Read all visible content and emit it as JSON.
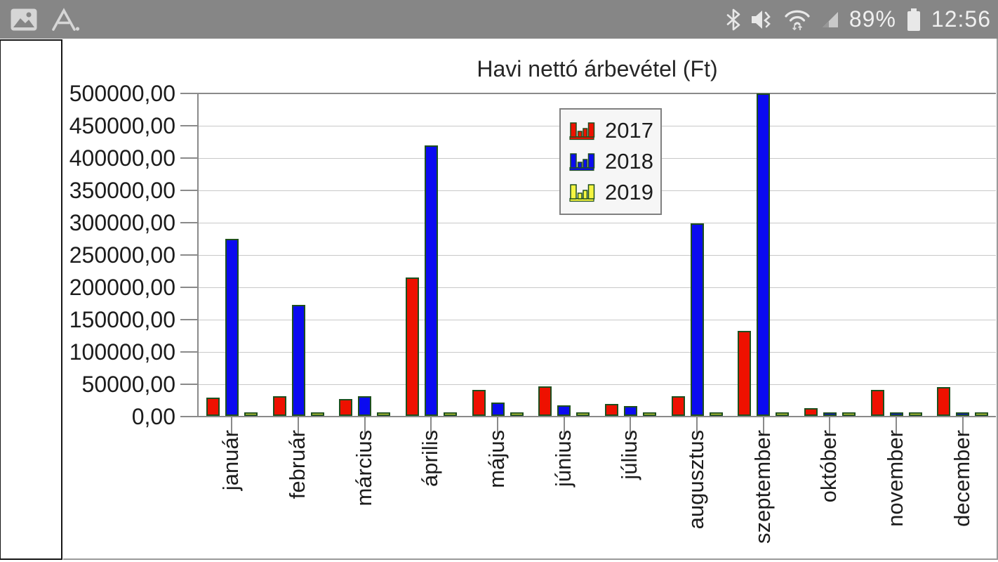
{
  "status_bar": {
    "bg_color": "#868686",
    "icons_left": [
      "gallery-icon",
      "letter-a-icon"
    ],
    "icons_right": [
      "bluetooth-icon",
      "mute-vibrate-icon",
      "wifi-traffic-icon",
      "cell-signal-icon",
      "battery-icon"
    ],
    "battery_percent": "89%",
    "time": "12:56"
  },
  "chart_data": {
    "type": "bar",
    "title": "Havi nettó árbevétel (Ft)",
    "categories": [
      "január",
      "február",
      "március",
      "április",
      "május",
      "június",
      "július",
      "augusztus",
      "szeptember",
      "október",
      "november",
      "december"
    ],
    "series": [
      {
        "name": "2017",
        "color": "#ee1100",
        "values": [
          28000,
          30000,
          26000,
          214000,
          40000,
          46000,
          18000,
          30000,
          131000,
          12000,
          40000,
          45000
        ]
      },
      {
        "name": "2018",
        "color": "#0b0bf0",
        "values": [
          274000,
          172000,
          30000,
          419000,
          21000,
          16000,
          15000,
          298000,
          499000,
          2000,
          2000,
          2000
        ]
      },
      {
        "name": "2019",
        "color": "#f5f542",
        "values": [
          2000,
          2000,
          2000,
          2000,
          2000,
          2000,
          2000,
          2000,
          2000,
          2000,
          2000,
          2000
        ]
      }
    ],
    "ylim": [
      0,
      500000
    ],
    "y_tick_step": 50000,
    "y_tick_labels": [
      "0,00",
      "50000,00",
      "100000,00",
      "150000,00",
      "200000,00",
      "250000,00",
      "300000,00",
      "350000,00",
      "400000,00",
      "450000,00",
      "500000,00"
    ],
    "xlabel": "",
    "ylabel": "",
    "grid": true,
    "grid_color": "#c8c8c8",
    "axis_color": "#8a8a8a",
    "bar_outline": "#1e4f1e",
    "legend_position": "top-center",
    "legend_bg": "#f6f6f6",
    "legend_border": "#808080"
  }
}
